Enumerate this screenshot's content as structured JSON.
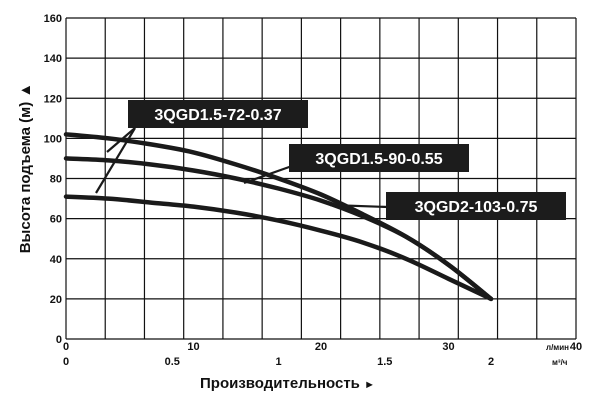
{
  "chart_data": {
    "type": "line",
    "title": "",
    "ylabel": "Высота подъема (м)",
    "xlabel": "Производительность",
    "y_axis_marker": "▲",
    "x_axis_marker": "►",
    "ylim": [
      0,
      160
    ],
    "y_ticks": [
      "0",
      "20",
      "40",
      "60",
      "80",
      "100",
      "120",
      "140",
      "160"
    ],
    "x_axis_primary": {
      "unit": "л/мин",
      "range": [
        0,
        40
      ],
      "ticks": [
        "0",
        "10",
        "20",
        "30",
        "40"
      ]
    },
    "x_axis_secondary": {
      "unit": "м³/ч",
      "range": [
        0,
        2.4
      ],
      "ticks": [
        "0",
        "0.5",
        "1",
        "1.5",
        "2"
      ]
    },
    "grid": true,
    "series": [
      {
        "name": "3QGD1.5-72-0.37",
        "x_m3h": [
          0,
          0.2,
          0.4,
          0.6,
          0.8,
          1.0,
          1.2,
          1.4,
          1.6,
          1.8,
          2.0
        ],
        "y": [
          71,
          70,
          68,
          66,
          63,
          59,
          54,
          48,
          40,
          30,
          20
        ]
      },
      {
        "name": "3QGD1.5-90-0.55",
        "x_m3h": [
          0,
          0.2,
          0.4,
          0.6,
          0.8,
          1.0,
          1.2,
          1.4,
          1.6,
          1.8,
          2.0
        ],
        "y": [
          90,
          89,
          87,
          84,
          80,
          75,
          69,
          61,
          51,
          37,
          20
        ]
      },
      {
        "name": "3QGD2-103-0.75",
        "x_m3h": [
          0,
          0.2,
          0.4,
          0.6,
          0.8,
          1.0,
          1.2,
          1.4,
          1.6,
          1.8,
          2.0
        ],
        "y": [
          102,
          100,
          97,
          93,
          87,
          80,
          72,
          62,
          51,
          37,
          20
        ]
      }
    ]
  },
  "style": {
    "line_color": "#1a1a1a",
    "label_bg": "#1c1c1c",
    "label_text": "#ffffff",
    "grid_color": "#111111"
  }
}
